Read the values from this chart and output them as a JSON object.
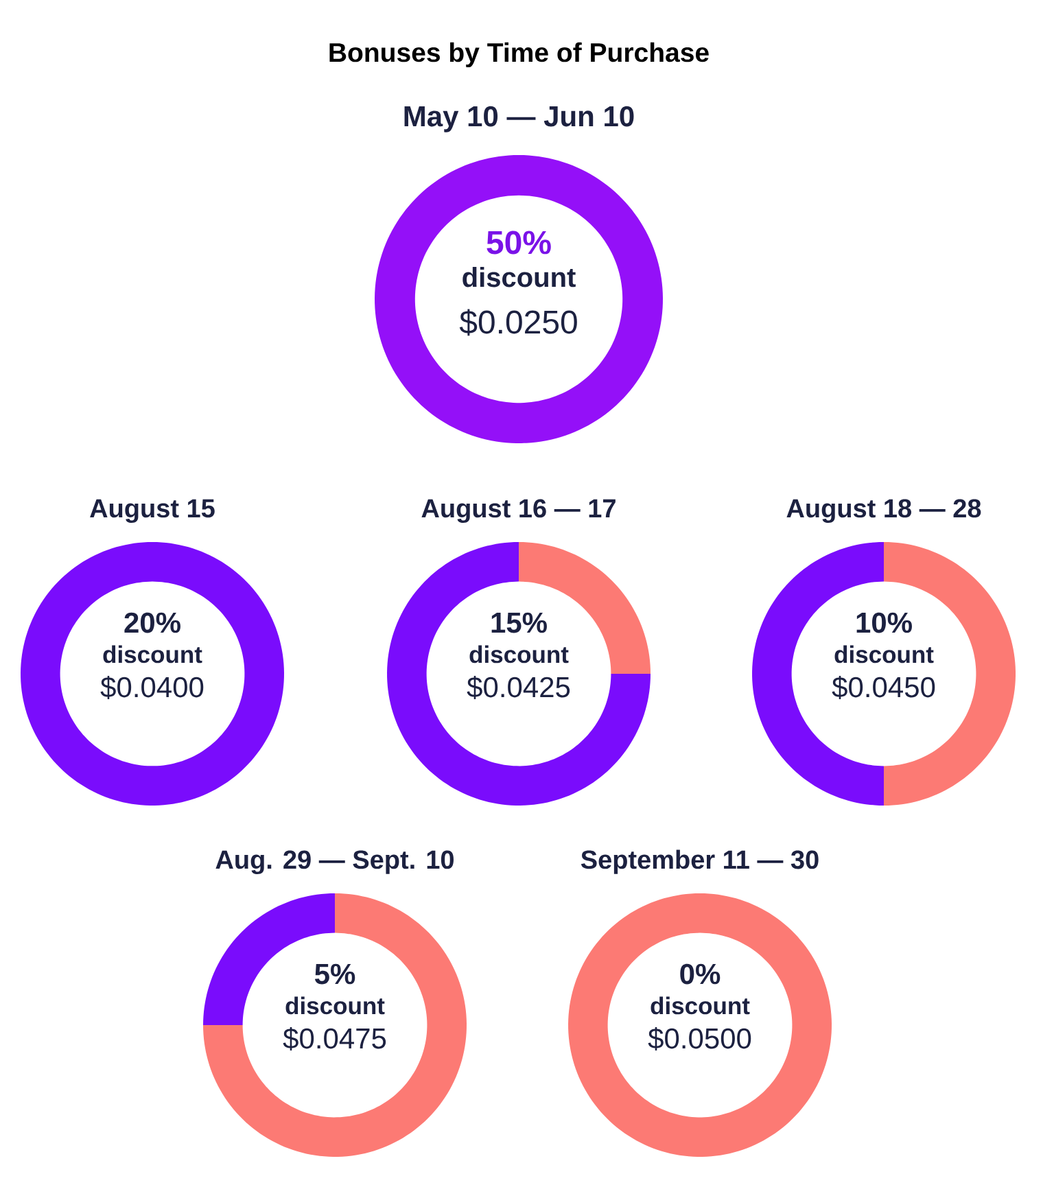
{
  "chart_data": [
    {
      "type": "donut",
      "title": "Bonuses by Time of Purchase",
      "subtitle": "May 10 — Jun 10",
      "categories": [
        null
      ],
      "values": [
        100
      ],
      "colors": [
        "#9410f8"
      ],
      "annotations": [
        "50%",
        "discount",
        "$0.0250"
      ]
    },
    {
      "type": "donut",
      "title": "August 15",
      "categories": [
        null
      ],
      "values": [
        100
      ],
      "colors": [
        "#7a0cfc"
      ],
      "annotations": [
        "20%",
        "discount",
        "$0.0400"
      ]
    },
    {
      "type": "donut",
      "title": "August 16 — 17",
      "categories": [
        null,
        null
      ],
      "values": [
        25,
        75
      ],
      "colors": [
        "#fc7a74",
        "#7a0cfc"
      ],
      "annotations": [
        "15%",
        "discount",
        "$0.0425"
      ]
    },
    {
      "type": "donut",
      "title": "August 18 — 28",
      "categories": [
        null,
        null
      ],
      "values": [
        50,
        50
      ],
      "colors": [
        "#fc7a74",
        "#7a0cfc"
      ],
      "annotations": [
        "10%",
        "discount",
        "$0.0450"
      ]
    },
    {
      "type": "donut",
      "title": "Aug. 29 — Sept. 10",
      "categories": [
        null,
        null
      ],
      "values": [
        75,
        25
      ],
      "colors": [
        "#fc7a74",
        "#7a0cfc"
      ],
      "annotations": [
        "5%",
        "discount",
        "$0.0475"
      ]
    },
    {
      "type": "donut",
      "title": "September 11 — 30",
      "categories": [
        null
      ],
      "values": [
        100
      ],
      "colors": [
        "#fc7a74"
      ],
      "annotations": [
        "0%",
        "discount",
        "$0.0500"
      ]
    }
  ]
}
